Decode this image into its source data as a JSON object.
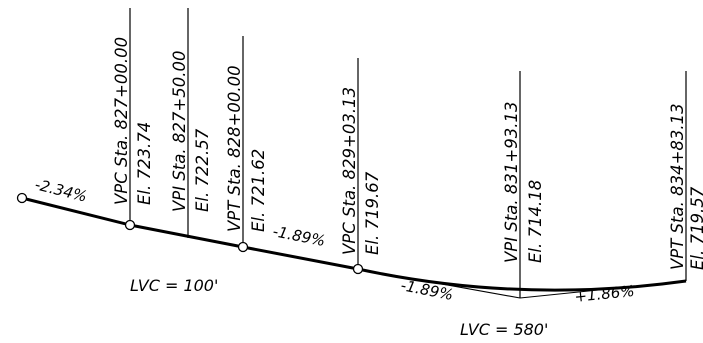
{
  "diagram": {
    "colors": {
      "ink": "#000000",
      "background": "#ffffff"
    },
    "stations": {
      "vpc1_sta": "VPC Sta. 827+00.00",
      "vpc1_el": "El. 723.74",
      "vpi1_sta": "VPI Sta. 827+50.00",
      "vpi1_el": "El. 722.57",
      "vpt1_sta": "VPT Sta. 828+00.00",
      "vpt1_el": "El. 721.62",
      "vpc2_sta": "VPC Sta. 829+03.13",
      "vpc2_el": "El. 719.67",
      "vpi2_sta": "VPI Sta. 831+93.13",
      "vpi2_el": "El. 714.18",
      "vpt2_sta": "VPT Sta. 834+83.13",
      "vpt2_el": "El. 719.57"
    },
    "grades": {
      "g1": "-2.34%",
      "g2": "-1.89%",
      "g3": "-1.89%",
      "g4": "+1.86%"
    },
    "curve_lengths": {
      "lvc1": "LVC = 100'",
      "lvc2": "LVC = 580'"
    }
  }
}
